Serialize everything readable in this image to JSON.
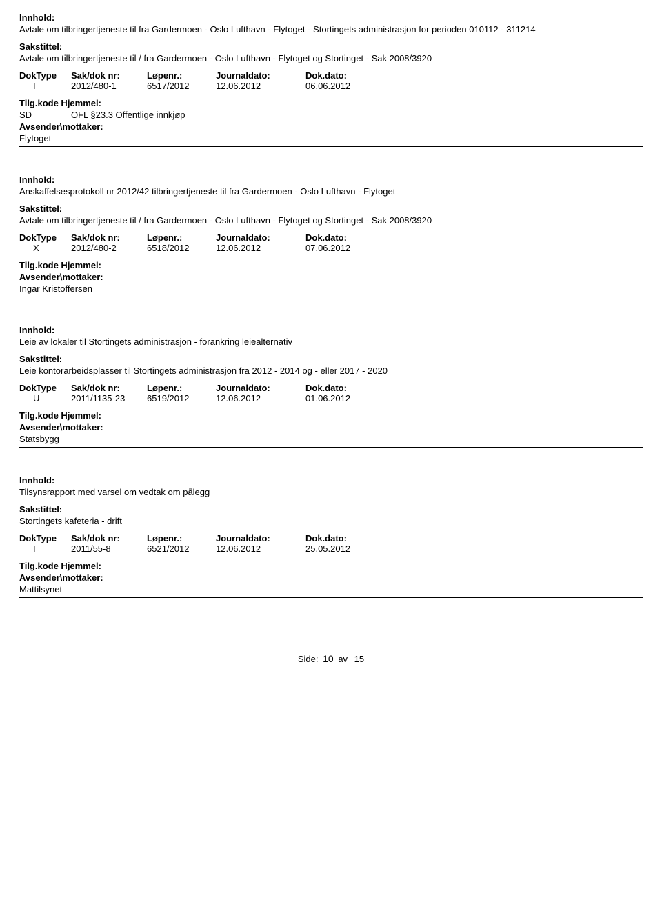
{
  "labels": {
    "innhold": "Innhold:",
    "sakstittel": "Sakstittel:",
    "doktype": "DokType",
    "sakdoknr": "Sak/dok nr:",
    "lopenr": "Løpenr.:",
    "journaldato": "Journaldato:",
    "dokdato": "Dok.dato:",
    "tilgkode_hjemmel": "Tilg.kode Hjemmel:",
    "avsender": "Avsender\\mottaker:"
  },
  "entries": [
    {
      "innhold": "Avtale om tilbringertjeneste til fra Gardermoen - Oslo Lufthavn - Flytoget - Stortingets administrasjon for perioden 010112 - 311214",
      "sakstittel": "Avtale om tilbringertjeneste til / fra Gardermoen - Oslo Lufthavn - Flytoget og Stortinget - Sak 2008/3920",
      "doktype": "I",
      "sakdoknr": "2012/480-1",
      "lopenr": "6517/2012",
      "journaldato": "12.06.2012",
      "dokdato": "06.06.2012",
      "hjemmel_code": "SD",
      "hjemmel_text": "OFL §23.3 Offentlige innkjøp",
      "avsender": "Flytoget"
    },
    {
      "innhold": "Anskaffelsesprotokoll nr 2012/42 tilbringertjeneste til fra Gardermoen - Oslo Lufthavn - Flytoget",
      "sakstittel": "Avtale om tilbringertjeneste til / fra Gardermoen - Oslo Lufthavn - Flytoget og Stortinget - Sak 2008/3920",
      "doktype": "X",
      "sakdoknr": "2012/480-2",
      "lopenr": "6518/2012",
      "journaldato": "12.06.2012",
      "dokdato": "07.06.2012",
      "hjemmel_code": "",
      "hjemmel_text": "",
      "avsender": "Ingar Kristoffersen"
    },
    {
      "innhold": "Leie av lokaler til Stortingets administrasjon - forankring leiealternativ",
      "sakstittel": "Leie kontorarbeidsplasser til Stortingets administrasjon fra 2012 - 2014 og - eller 2017 - 2020",
      "doktype": "U",
      "sakdoknr": "2011/1135-23",
      "lopenr": "6519/2012",
      "journaldato": "12.06.2012",
      "dokdato": "01.06.2012",
      "hjemmel_code": "",
      "hjemmel_text": "",
      "avsender": "Statsbygg"
    },
    {
      "innhold": "Tilsynsrapport med varsel om vedtak om pålegg",
      "sakstittel": "Stortingets kafeteria - drift",
      "doktype": "I",
      "sakdoknr": "2011/55-8",
      "lopenr": "6521/2012",
      "journaldato": "12.06.2012",
      "dokdato": "25.05.2012",
      "hjemmel_code": "",
      "hjemmel_text": "",
      "avsender": "Mattilsynet"
    }
  ],
  "footer": {
    "label": "Side:",
    "page": "10",
    "of": "av",
    "total": "15"
  }
}
